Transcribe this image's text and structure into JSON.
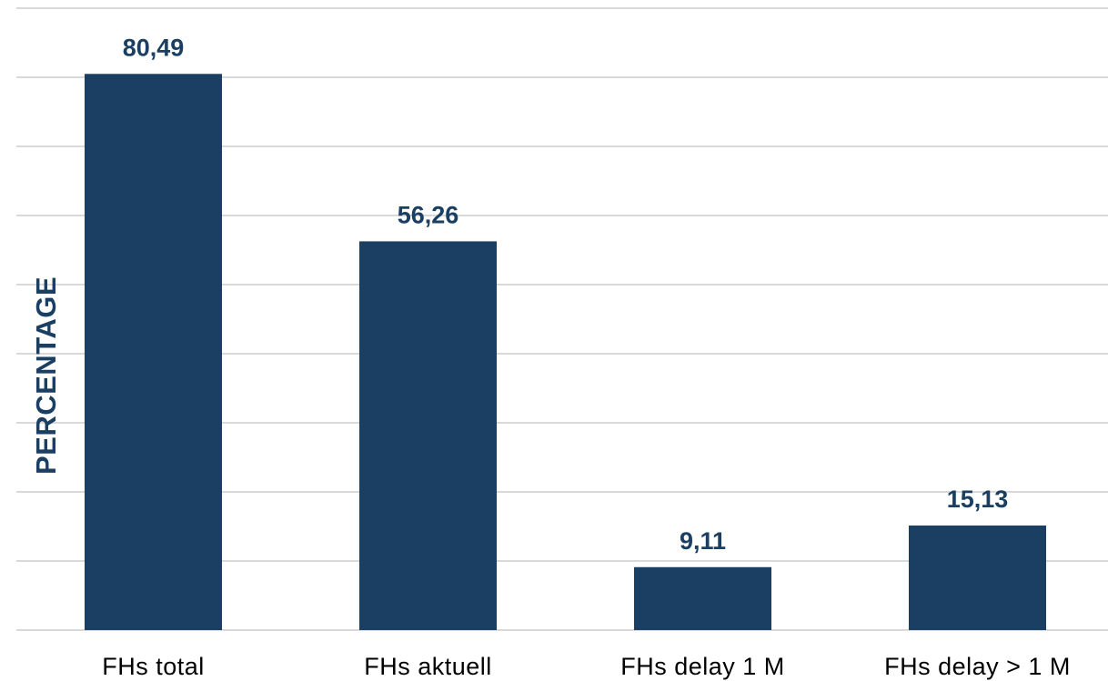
{
  "chart_data": {
    "type": "bar",
    "categories": [
      "FHs total",
      "FHs aktuell",
      "FHs delay 1 M",
      "FHs delay > 1 M"
    ],
    "values": [
      80.49,
      56.26,
      9.11,
      15.13
    ],
    "data_labels": [
      "80,49",
      "56,26",
      "9,11",
      "15,13"
    ],
    "title": "",
    "xlabel": "",
    "ylabel": "PERCENTAGE",
    "ylim": [
      0,
      90
    ],
    "grid": true,
    "legend": "none",
    "colors": {
      "bar": "#1b3f63",
      "label": "#1b3f63",
      "grid": "#d9d9d9"
    }
  }
}
